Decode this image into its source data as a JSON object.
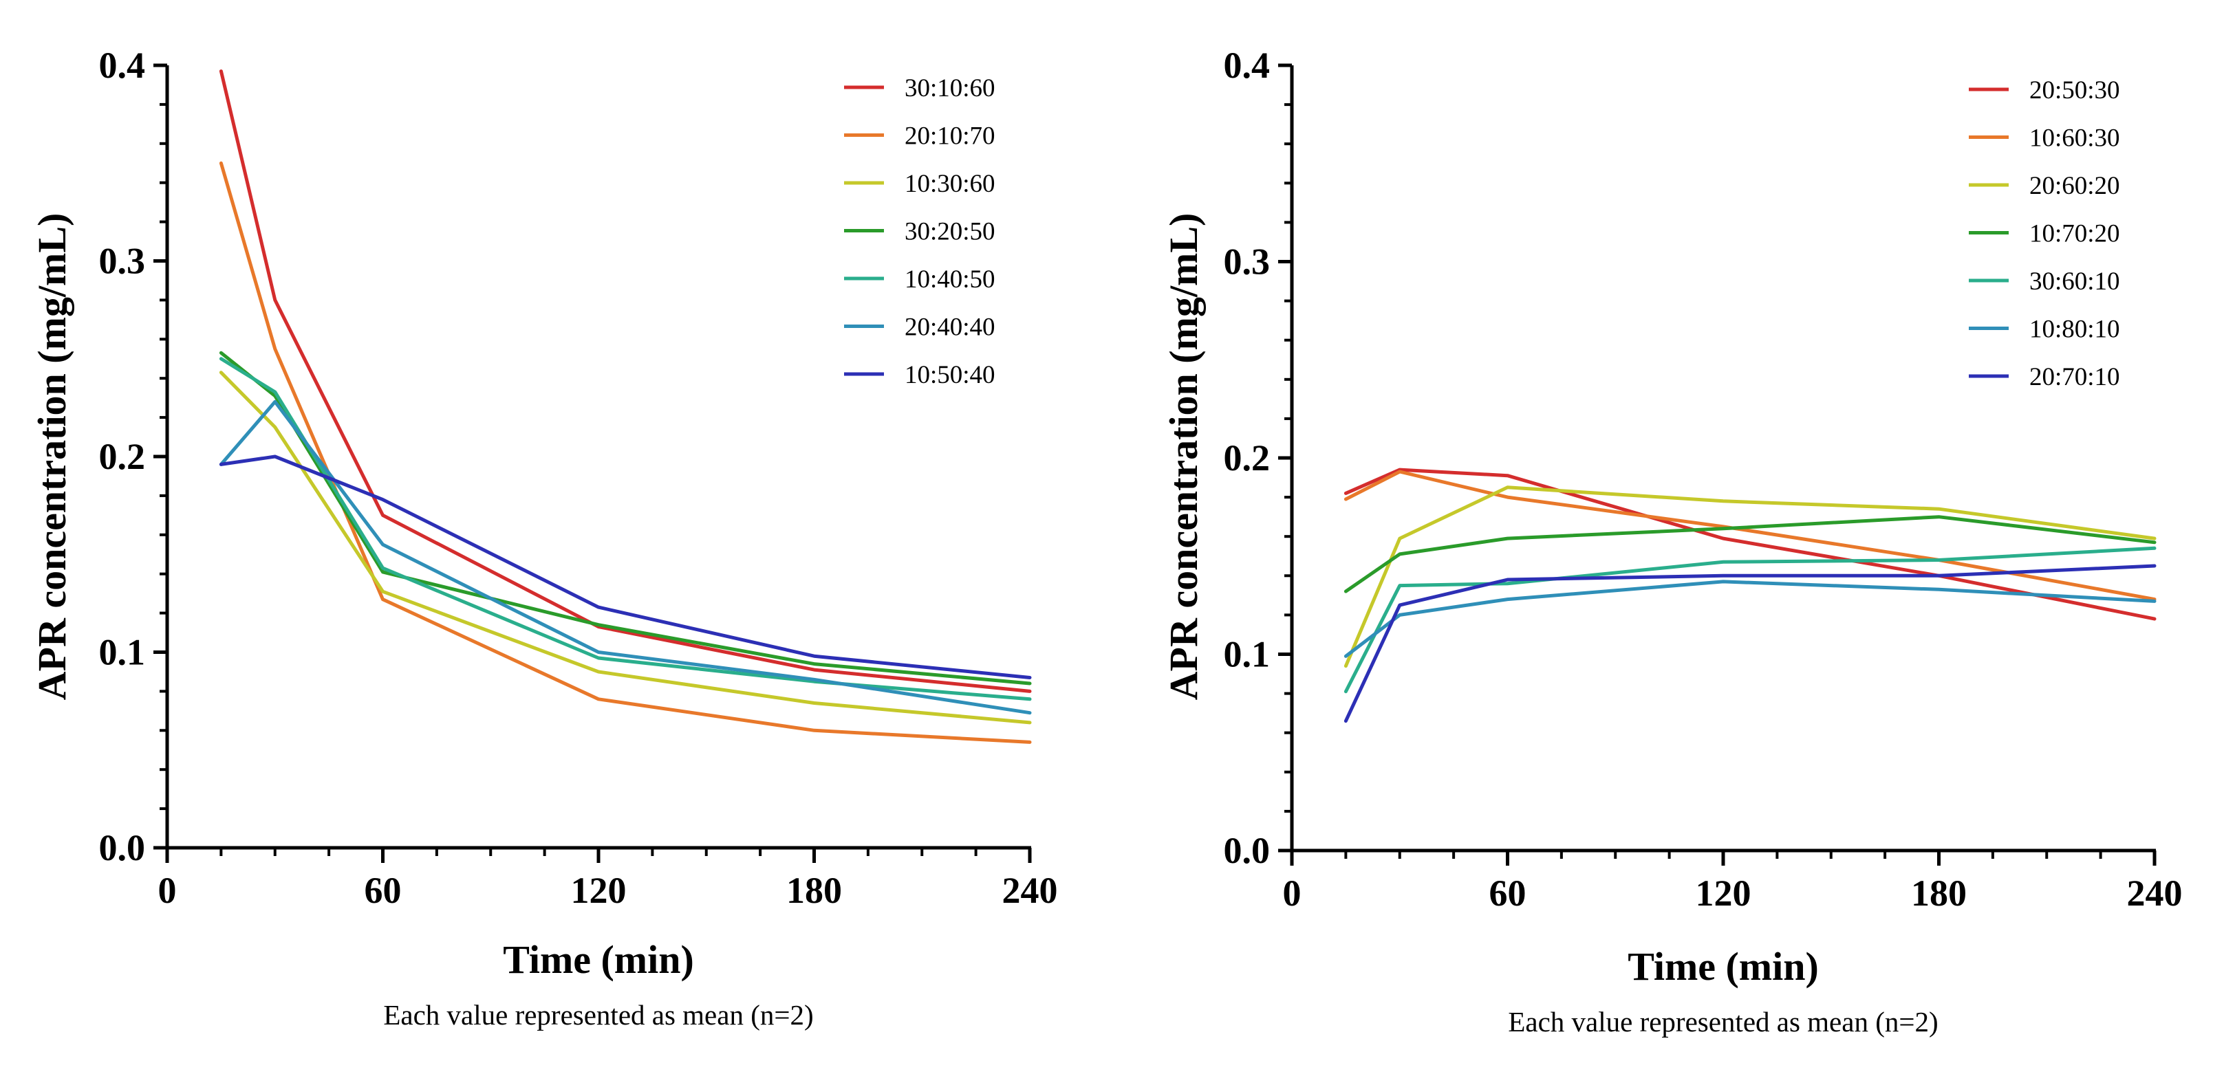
{
  "chart_data": [
    {
      "type": "line",
      "title": "",
      "xlabel": "Time (min)",
      "ylabel": "APR concentration (mg/mL)",
      "note": "Each value represented as mean (n=2)",
      "xlim": [
        0,
        240
      ],
      "ylim": [
        0.0,
        0.4
      ],
      "x_ticks": [
        "0",
        "60",
        "120",
        "180",
        "240"
      ],
      "y_ticks": [
        "0.0",
        "0.1",
        "0.2",
        "0.3",
        "0.4"
      ],
      "grid": false,
      "legend_position": "top-right",
      "x": [
        15,
        30,
        60,
        120,
        180,
        240
      ],
      "series": [
        {
          "name": "30:10:60",
          "color": "#d42d2d",
          "values": [
            0.397,
            0.28,
            0.17,
            0.113,
            0.091,
            0.08
          ]
        },
        {
          "name": "20:10:70",
          "color": "#e8782a",
          "values": [
            0.35,
            0.255,
            0.127,
            0.076,
            0.06,
            0.054
          ]
        },
        {
          "name": "10:30:60",
          "color": "#c5c82a",
          "values": [
            0.243,
            0.215,
            0.131,
            0.09,
            0.074,
            0.064
          ]
        },
        {
          "name": "30:20:50",
          "color": "#2a9b2a",
          "values": [
            0.253,
            0.231,
            0.141,
            0.114,
            0.094,
            0.084
          ]
        },
        {
          "name": "10:40:50",
          "color": "#2aae8c",
          "values": [
            0.25,
            0.233,
            0.143,
            0.097,
            0.085,
            0.076
          ]
        },
        {
          "name": "20:40:40",
          "color": "#2f8fb8",
          "values": [
            0.196,
            0.228,
            0.155,
            0.1,
            0.086,
            0.069
          ]
        },
        {
          "name": "10:50:40",
          "color": "#2c2fb5",
          "values": [
            0.196,
            0.2,
            0.178,
            0.123,
            0.098,
            0.087
          ]
        }
      ]
    },
    {
      "type": "line",
      "title": "",
      "xlabel": "Time (min)",
      "ylabel": "APR concentration (mg/mL)",
      "note": "Each value represented as mean (n=2)",
      "xlim": [
        0,
        240
      ],
      "ylim": [
        0.0,
        0.4
      ],
      "x_ticks": [
        "0",
        "60",
        "120",
        "180",
        "240"
      ],
      "y_ticks": [
        "0.0",
        "0.1",
        "0.2",
        "0.3",
        "0.4"
      ],
      "grid": false,
      "legend_position": "top-right",
      "x": [
        15,
        30,
        60,
        120,
        180,
        240
      ],
      "series": [
        {
          "name": "20:50:30",
          "color": "#d42d2d",
          "values": [
            0.182,
            0.194,
            0.191,
            0.159,
            0.14,
            0.118
          ]
        },
        {
          "name": "10:60:30",
          "color": "#e8782a",
          "values": [
            0.179,
            0.193,
            0.18,
            0.165,
            0.148,
            0.128
          ]
        },
        {
          "name": "20:60:20",
          "color": "#c5c82a",
          "values": [
            0.094,
            0.159,
            0.185,
            0.178,
            0.174,
            0.159
          ]
        },
        {
          "name": "10:70:20",
          "color": "#2a9b2a",
          "values": [
            0.132,
            0.151,
            0.159,
            0.164,
            0.17,
            0.157
          ]
        },
        {
          "name": "30:60:10",
          "color": "#2aae8c",
          "values": [
            0.081,
            0.135,
            0.136,
            0.147,
            0.148,
            0.154
          ]
        },
        {
          "name": "10:80:10",
          "color": "#2f8fb8",
          "values": [
            0.099,
            0.12,
            0.128,
            0.137,
            0.133,
            0.127
          ]
        },
        {
          "name": "20:70:10",
          "color": "#2c2fb5",
          "values": [
            0.066,
            0.125,
            0.138,
            0.14,
            0.14,
            0.145
          ]
        }
      ]
    }
  ]
}
